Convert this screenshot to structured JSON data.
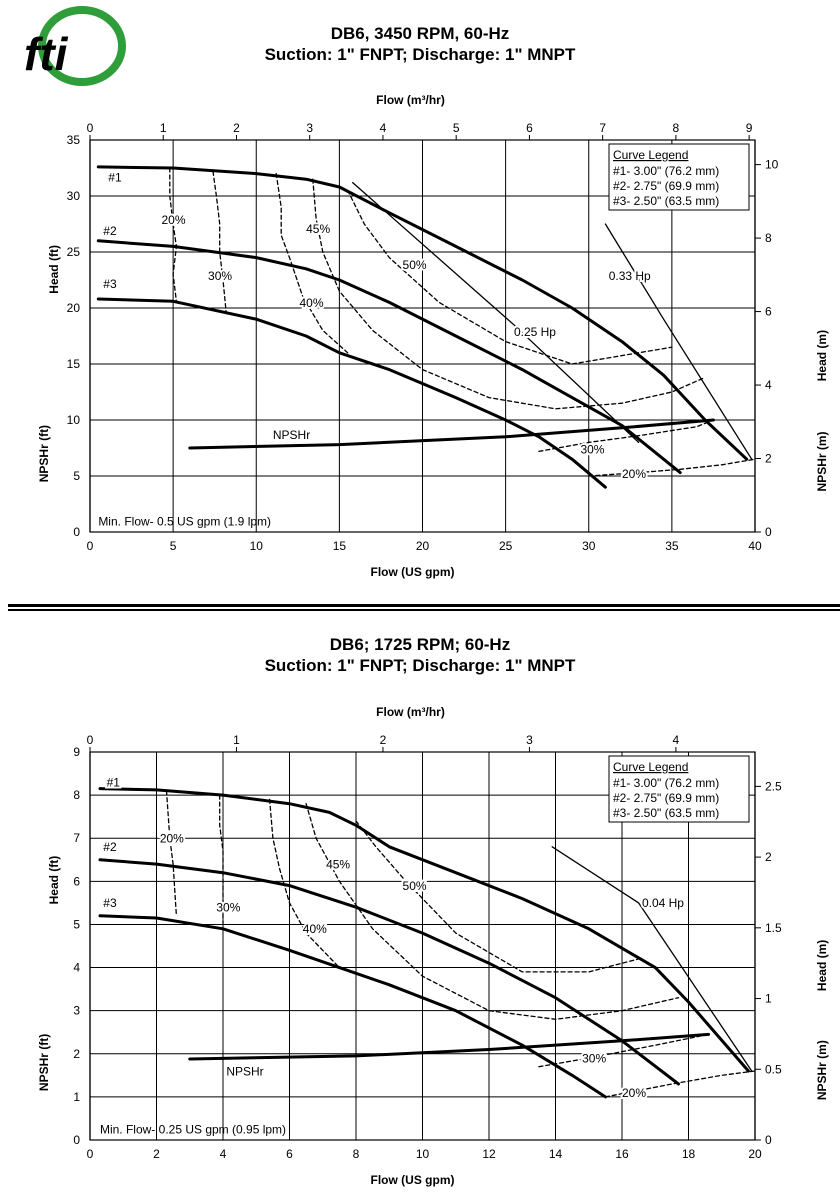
{
  "logo": {
    "text": "fti",
    "colors": {
      "green": "#2e9d3a",
      "blue": "#1f4fa0"
    }
  },
  "divider": true,
  "chart_data": [
    {
      "type": "line",
      "title": "DB6, 3450 RPM, 60-Hz",
      "subtitle": "Suction: 1\" FNPT; Discharge: 1\" MNPT",
      "xlabel": "Flow (US gpm)",
      "x2label": "Flow (m³/hr)",
      "ylabel": "Head (ft)",
      "ylabel2": "NPSHr (ft)",
      "y2label": "Head (m)",
      "y2label2": "NPSHr (m)",
      "xlim": [
        0,
        40
      ],
      "ylim": [
        0,
        35
      ],
      "xticks": [
        0,
        5,
        10,
        15,
        20,
        25,
        30,
        35,
        40
      ],
      "yticks": [
        0,
        5,
        10,
        15,
        20,
        25,
        30,
        35
      ],
      "x2ticks": [
        0,
        1,
        2,
        3,
        4,
        5,
        6,
        7,
        8,
        9
      ],
      "y2ticks": [
        0,
        2,
        4,
        6,
        8,
        10
      ],
      "grid": true,
      "legend": {
        "title": "Curve Legend",
        "items": [
          "#1- 3.00\" (76.2 mm)",
          "#2- 2.75\" (69.9 mm)",
          "#3- 2.50\" (63.5 mm)"
        ],
        "placement": "top-right"
      },
      "series": [
        {
          "name": "#1",
          "style": "solid-bold",
          "x": [
            0.5,
            5,
            10,
            13,
            15,
            18,
            22,
            26,
            29,
            32,
            34.5,
            37,
            39.5
          ],
          "y": [
            32.6,
            32.5,
            32.0,
            31.5,
            30.8,
            28.5,
            25.5,
            22.5,
            20.0,
            17.0,
            14.0,
            10.0,
            6.5
          ]
        },
        {
          "name": "#2",
          "style": "solid-bold",
          "x": [
            0.5,
            5,
            10,
            13,
            15,
            18,
            22,
            26,
            29,
            32,
            35.5
          ],
          "y": [
            26.0,
            25.5,
            24.5,
            23.5,
            22.5,
            20.5,
            17.5,
            14.5,
            12.0,
            9.5,
            5.3
          ]
        },
        {
          "name": "#3",
          "style": "solid-bold",
          "x": [
            0.5,
            5,
            10,
            13,
            15,
            18,
            22,
            25,
            27,
            29,
            31
          ],
          "y": [
            20.8,
            20.6,
            19.0,
            17.5,
            16.0,
            14.5,
            12.0,
            10.0,
            8.5,
            6.5,
            4.0
          ]
        },
        {
          "name": "NPSHr",
          "style": "solid-bold",
          "x": [
            6,
            15,
            25,
            32,
            37.5
          ],
          "y": [
            7.5,
            7.8,
            8.5,
            9.3,
            10.0
          ]
        },
        {
          "name": "0.25 Hp",
          "style": "solid",
          "x": [
            15.8,
            25.5,
            33
          ],
          "y": [
            31.2,
            18.5,
            8.0
          ]
        },
        {
          "name": "0.33 Hp",
          "style": "solid",
          "x": [
            31,
            34.5,
            39.8
          ],
          "y": [
            27.5,
            19.0,
            6.5
          ]
        },
        {
          "name": "20%",
          "style": "dashed",
          "x": [
            4.8,
            4.8,
            5.0,
            5.2,
            5.0,
            5.2
          ],
          "y": [
            32.5,
            30.0,
            27.5,
            25.5,
            23.0,
            20.6
          ]
        },
        {
          "name": "30%",
          "style": "dashed",
          "x": [
            7.4,
            7.6,
            7.8,
            7.8,
            8.0,
            8.2
          ],
          "y": [
            32.2,
            30.0,
            27.5,
            25.0,
            22.5,
            19.5
          ]
        },
        {
          "name": "40%",
          "style": "dashed",
          "x": [
            11.2,
            11.5,
            11.5,
            12.0,
            12.8,
            14.0,
            15.5
          ],
          "y": [
            32.0,
            29.0,
            26.5,
            24.5,
            21.0,
            18.0,
            16.0
          ]
        },
        {
          "name": "45%",
          "style": "dashed",
          "x": [
            13.4,
            13.6,
            14.0,
            15.0,
            17.0,
            20.0,
            24.0,
            28.0,
            32.0,
            35.0,
            37.0
          ],
          "y": [
            31.5,
            28.0,
            25.0,
            21.5,
            18.0,
            14.5,
            12.0,
            11.0,
            11.5,
            12.5,
            13.8
          ]
        },
        {
          "name": "50%",
          "style": "dashed",
          "x": [
            15.5,
            16.5,
            18.0,
            21.0,
            25.0,
            29.0,
            33.0,
            35.0
          ],
          "y": [
            30.5,
            27.5,
            24.5,
            20.5,
            17.0,
            15.0,
            16.0,
            16.5
          ]
        },
        {
          "name": "NPSHr 30%",
          "style": "dashed",
          "x": [
            27,
            30,
            33,
            36.5,
            37.5
          ],
          "y": [
            7.2,
            8.0,
            8.6,
            9.4,
            10.0
          ]
        },
        {
          "name": "NPSHr 20%",
          "style": "dashed",
          "x": [
            30,
            33,
            35.5,
            38,
            40
          ],
          "y": [
            5.0,
            5.3,
            5.6,
            6.0,
            6.5
          ]
        }
      ],
      "annotations": [
        {
          "text": "#1",
          "x": 1.1,
          "y": 31.3
        },
        {
          "text": "#2",
          "x": 0.8,
          "y": 26.5
        },
        {
          "text": "#3",
          "x": 0.8,
          "y": 21.8
        },
        {
          "text": "20%",
          "x": 4.3,
          "y": 27.5
        },
        {
          "text": "30%",
          "x": 7.1,
          "y": 22.5
        },
        {
          "text": "40%",
          "x": 12.6,
          "y": 20.1
        },
        {
          "text": "45%",
          "x": 13.0,
          "y": 26.7
        },
        {
          "text": "50%",
          "x": 18.8,
          "y": 23.5
        },
        {
          "text": "0.25 Hp",
          "x": 25.5,
          "y": 17.5
        },
        {
          "text": "0.33 Hp",
          "x": 31.2,
          "y": 22.5
        },
        {
          "text": "NPSHr",
          "x": 11.0,
          "y": 8.3
        },
        {
          "text": "30%",
          "x": 29.5,
          "y": 7.0
        },
        {
          "text": "20%",
          "x": 32.0,
          "y": 4.8
        },
        {
          "text": "Min. Flow- 0.5 US gpm (1.9 lpm)",
          "x": 0.5,
          "y": 0.6
        }
      ]
    },
    {
      "type": "line",
      "title": "DB6; 1725 RPM; 60-Hz",
      "subtitle": "Suction: 1\" FNPT; Discharge: 1\" MNPT",
      "xlabel": "Flow (US gpm)",
      "x2label": "Flow (m³/hr)",
      "ylabel": "Head (ft)",
      "ylabel2": "NPSHr (ft)",
      "y2label": "Head (m)",
      "y2label2": "NPSHr (m)",
      "xlim": [
        0,
        20
      ],
      "ylim": [
        0,
        9
      ],
      "xticks": [
        0,
        2,
        4,
        6,
        8,
        10,
        12,
        14,
        16,
        18,
        20
      ],
      "yticks": [
        0,
        1,
        2,
        3,
        4,
        5,
        6,
        7,
        8,
        9
      ],
      "x2ticks": [
        0,
        1,
        2,
        3,
        4
      ],
      "y2ticks": [
        0,
        0.5,
        1,
        1.5,
        2,
        2.5
      ],
      "grid": true,
      "legend": {
        "title": "Curve Legend",
        "items": [
          "#1- 3.00\" (76.2 mm)",
          "#2- 2.75\" (69.9 mm)",
          "#3- 2.50\" (63.5 mm)"
        ],
        "placement": "top-right"
      },
      "series": [
        {
          "name": "#1",
          "style": "solid-bold",
          "x": [
            0.3,
            2,
            4,
            6,
            7.2,
            8,
            9,
            11,
            13,
            15,
            17,
            18,
            19.8
          ],
          "y": [
            8.15,
            8.12,
            8.0,
            7.8,
            7.6,
            7.3,
            6.8,
            6.2,
            5.6,
            4.9,
            4.0,
            3.2,
            1.6
          ]
        },
        {
          "name": "#2",
          "style": "solid-bold",
          "x": [
            0.3,
            2,
            4,
            6,
            8,
            10,
            12,
            14,
            16,
            17.7
          ],
          "y": [
            6.5,
            6.4,
            6.2,
            5.9,
            5.4,
            4.8,
            4.1,
            3.3,
            2.3,
            1.3
          ]
        },
        {
          "name": "#3",
          "style": "solid-bold",
          "x": [
            0.3,
            2,
            4,
            6,
            7.5,
            9,
            11,
            13,
            14.5,
            15.5
          ],
          "y": [
            5.2,
            5.15,
            4.9,
            4.4,
            4.0,
            3.6,
            3.0,
            2.2,
            1.5,
            1.0
          ]
        },
        {
          "name": "NPSHr",
          "style": "solid-bold",
          "x": [
            3,
            8,
            12,
            16,
            18.6
          ],
          "y": [
            1.88,
            1.95,
            2.1,
            2.3,
            2.45
          ]
        },
        {
          "name": "0.04 Hp",
          "style": "solid",
          "x": [
            13.9,
            16.5,
            19.9
          ],
          "y": [
            6.8,
            5.5,
            1.6
          ]
        },
        {
          "name": "20%",
          "style": "dashed",
          "x": [
            2.3,
            2.4,
            2.5,
            2.6
          ],
          "y": [
            8.1,
            7.0,
            6.4,
            5.2
          ]
        },
        {
          "name": "30%",
          "style": "dashed",
          "x": [
            3.9,
            3.9,
            4.0,
            4.0,
            4.0
          ],
          "y": [
            8.0,
            7.3,
            6.7,
            6.2,
            5.0
          ]
        },
        {
          "name": "40%",
          "style": "dashed",
          "x": [
            5.4,
            5.5,
            5.7,
            6.0,
            6.5,
            7.5
          ],
          "y": [
            7.9,
            7.0,
            6.3,
            5.5,
            4.8,
            4.0
          ]
        },
        {
          "name": "45%",
          "style": "dashed",
          "x": [
            6.5,
            6.8,
            7.5,
            8.5,
            10,
            12,
            14,
            16,
            17.7
          ],
          "y": [
            7.8,
            7.0,
            6.0,
            4.9,
            3.8,
            3.0,
            2.8,
            3.0,
            3.3
          ]
        },
        {
          "name": "50%",
          "style": "dashed",
          "x": [
            8.0,
            8.6,
            9.5,
            11,
            13,
            15,
            16.5
          ],
          "y": [
            7.4,
            6.8,
            6.0,
            4.8,
            3.9,
            3.9,
            4.2
          ]
        },
        {
          "name": "NPSHr 30%",
          "style": "dashed",
          "x": [
            13.5,
            15,
            17,
            18.6
          ],
          "y": [
            1.7,
            1.9,
            2.2,
            2.45
          ]
        },
        {
          "name": "NPSHr 20%",
          "style": "dashed",
          "x": [
            15.5,
            17.5,
            19,
            20
          ],
          "y": [
            1.0,
            1.3,
            1.5,
            1.6
          ]
        }
      ],
      "annotations": [
        {
          "text": "#1",
          "x": 0.5,
          "y": 8.2
        },
        {
          "text": "#2",
          "x": 0.4,
          "y": 6.7
        },
        {
          "text": "#3",
          "x": 0.4,
          "y": 5.4
        },
        {
          "text": "20%",
          "x": 2.1,
          "y": 6.9
        },
        {
          "text": "30%",
          "x": 3.8,
          "y": 5.3
        },
        {
          "text": "40%",
          "x": 6.4,
          "y": 4.8
        },
        {
          "text": "45%",
          "x": 7.1,
          "y": 6.3
        },
        {
          "text": "50%",
          "x": 9.4,
          "y": 5.8
        },
        {
          "text": "0.04 Hp",
          "x": 16.6,
          "y": 5.4
        },
        {
          "text": "NPSHr",
          "x": 4.1,
          "y": 1.5
        },
        {
          "text": "30%",
          "x": 14.8,
          "y": 1.8
        },
        {
          "text": "20%",
          "x": 16.0,
          "y": 1.0
        },
        {
          "text": "Min. Flow- 0.25 US gpm (0.95 lpm)",
          "x": 0.3,
          "y": 0.15
        }
      ]
    }
  ]
}
